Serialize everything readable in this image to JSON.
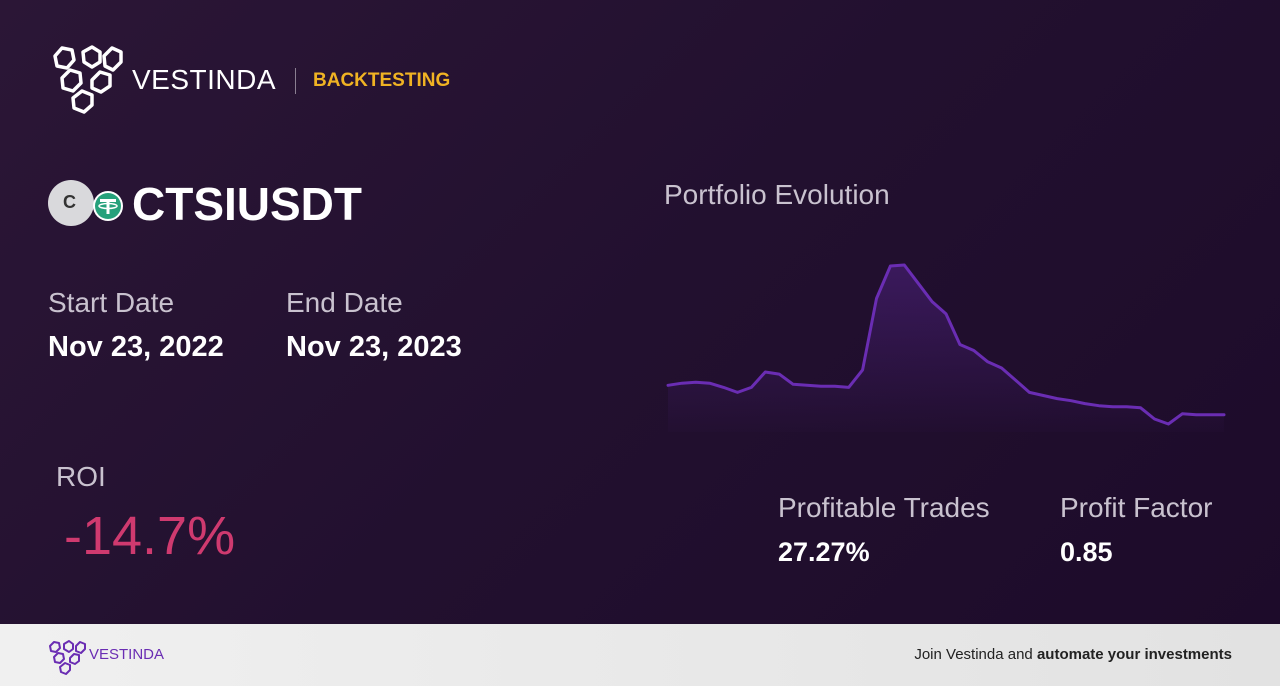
{
  "header": {
    "brand": "VESTINDA",
    "section": "BACKTESTING"
  },
  "asset": {
    "icon_letter": "C",
    "symbol": "CTSIUSDT"
  },
  "dates": {
    "start_label": "Start Date",
    "start_value": "Nov 23, 2022",
    "end_label": "End Date",
    "end_value": "Nov 23, 2023"
  },
  "roi": {
    "label": "ROI",
    "value": "-14.7%"
  },
  "stats": {
    "profitable_label": "Profitable Trades",
    "profitable_value": "27.27%",
    "factor_label": "Profit Factor",
    "factor_value": "0.85"
  },
  "chart_data": {
    "type": "line",
    "title": "Portfolio Evolution",
    "color": "#6a2db3",
    "values": [
      100,
      101.0,
      101.5,
      101.0,
      99.0,
      96.6,
      99.0,
      106.4,
      105.4,
      100.5,
      100,
      99.5,
      99.5,
      99.0,
      107.4,
      141.7,
      157.3,
      157.8,
      149.0,
      140.2,
      134.3,
      119.6,
      116.7,
      111.3,
      108.3,
      102.5,
      96.6,
      95.1,
      93.6,
      92.6,
      91.2,
      90.2,
      89.7,
      89.7,
      89.2,
      83.8,
      81.4,
      86.3,
      85.8,
      85.8,
      85.8
    ]
  },
  "footer": {
    "brand": "VESTINDA",
    "cta_plain": "Join Vestinda and",
    "cta_bold": "automate your investments"
  }
}
